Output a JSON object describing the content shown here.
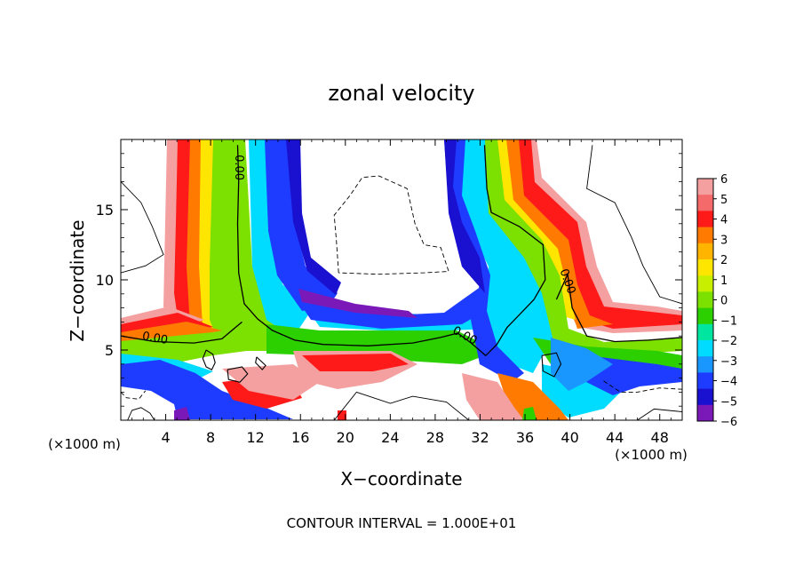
{
  "chart_data": {
    "type": "heatmap",
    "title": "zonal velocity",
    "xlabel": "X−coordinate",
    "ylabel": "Z−coordinate",
    "x_unit_label": "(×1000 m)",
    "x_unit_label_right": "(×1000 m)",
    "footer": "CONTOUR INTERVAL = 1.000E+01",
    "xlim": [
      0,
      50
    ],
    "ylim": [
      0,
      20
    ],
    "x_ticks": [
      4,
      8,
      12,
      16,
      20,
      24,
      28,
      32,
      36,
      40,
      44,
      48
    ],
    "y_ticks": [
      5,
      10,
      15
    ],
    "colorbar": {
      "ticks": [
        6,
        5,
        4,
        3,
        2,
        1,
        0,
        -1,
        -2,
        -3,
        -4,
        -5,
        -6
      ],
      "tick_labels": [
        "6",
        "5",
        "4",
        "3",
        "2",
        "1",
        "0",
        "−1",
        "−2",
        "−3",
        "−4",
        "−5",
        "−6"
      ],
      "colors": [
        "#f4a0a0",
        "#f46a6a",
        "#ff1a1a",
        "#ff7a00",
        "#ffb400",
        "#ffe600",
        "#c8ee00",
        "#7ce000",
        "#2cd000",
        "#00e6a0",
        "#00dcff",
        "#1a96ff",
        "#1e3cff",
        "#1a10d0",
        "#7a18b8"
      ]
    },
    "contour_labels": [
      "0.00",
      "0.00",
      "0.00",
      "0.00"
    ],
    "contour_label_positions": [
      [
        10.2,
        18.0
      ],
      [
        3.0,
        5.6
      ],
      [
        30.5,
        5.8
      ],
      [
        39.5,
        9.8
      ]
    ],
    "zero_contours": [
      [
        [
          10.4,
          19.6
        ],
        [
          10.5,
          17.0
        ],
        [
          10.4,
          14.0
        ],
        [
          10.5,
          10.5
        ],
        [
          11.0,
          8.3
        ],
        [
          12.2,
          7.2
        ],
        [
          13.5,
          6.4
        ],
        [
          15.5,
          5.7
        ],
        [
          18.0,
          5.4
        ],
        [
          22.0,
          5.3
        ],
        [
          26.0,
          5.5
        ],
        [
          28.5,
          5.9
        ],
        [
          30.0,
          6.2
        ],
        [
          31.2,
          5.5
        ],
        [
          32.5,
          4.6
        ],
        [
          33.5,
          5.4
        ],
        [
          34.4,
          6.6
        ],
        [
          35.6,
          7.6
        ],
        [
          36.8,
          8.6
        ],
        [
          37.8,
          10.0
        ],
        [
          37.6,
          12.5
        ],
        [
          35.5,
          13.8
        ],
        [
          33.0,
          14.8
        ],
        [
          32.6,
          16.5
        ],
        [
          32.4,
          19.6
        ]
      ],
      [
        [
          0,
          6.0
        ],
        [
          3.0,
          5.6
        ],
        [
          6.5,
          5.5
        ],
        [
          9.0,
          5.8
        ],
        [
          10.8,
          7.0
        ]
      ],
      [
        [
          38.8,
          8.6
        ],
        [
          39.8,
          10.4
        ],
        [
          40.2,
          8.0
        ],
        [
          41.5,
          6.0
        ],
        [
          44.0,
          5.6
        ],
        [
          47.0,
          5.7
        ],
        [
          50.0,
          5.9
        ]
      ]
    ],
    "solid_contours": [
      [
        [
          0,
          17.0
        ],
        [
          1.8,
          15.5
        ],
        [
          2.8,
          13.8
        ],
        [
          3.8,
          11.8
        ],
        [
          2.2,
          11.0
        ],
        [
          0,
          10.5
        ]
      ],
      [
        [
          42.0,
          19.6
        ],
        [
          41.5,
          16.5
        ],
        [
          44.0,
          15.5
        ],
        [
          45.5,
          13.0
        ],
        [
          46.5,
          11.0
        ],
        [
          48.0,
          8.8
        ],
        [
          50.0,
          8.3
        ]
      ],
      [
        [
          0.6,
          0
        ],
        [
          1.0,
          0.7
        ],
        [
          1.8,
          0.9
        ],
        [
          2.6,
          0.5
        ],
        [
          3.0,
          0
        ]
      ],
      [
        [
          19.0,
          0
        ],
        [
          20.5,
          1.5
        ],
        [
          21.0,
          2.0
        ],
        [
          24.0,
          1.2
        ],
        [
          26.0,
          1.7
        ],
        [
          29.0,
          1.3
        ],
        [
          31.0,
          0
        ]
      ],
      [
        [
          46.0,
          0
        ],
        [
          47.5,
          0.8
        ],
        [
          50.0,
          0.6
        ]
      ]
    ],
    "dashed_contours": [
      [
        [
          19.4,
          10.5
        ],
        [
          19.2,
          12.8
        ],
        [
          19.0,
          14.6
        ],
        [
          20.4,
          16.0
        ],
        [
          21.5,
          17.3
        ],
        [
          23.0,
          17.4
        ],
        [
          25.5,
          16.5
        ],
        [
          26.2,
          14.0
        ],
        [
          27.0,
          12.5
        ],
        [
          28.5,
          12.3
        ],
        [
          29.2,
          10.6
        ],
        [
          27.0,
          10.5
        ],
        [
          23.0,
          10.4
        ],
        [
          19.4,
          10.5
        ]
      ],
      [
        [
          43.0,
          2.8
        ],
        [
          44.5,
          2.0
        ],
        [
          46.0,
          2.0
        ],
        [
          48.0,
          2.3
        ],
        [
          50.0,
          2.2
        ]
      ],
      [
        [
          0,
          2.0
        ],
        [
          0.5,
          1.6
        ],
        [
          1.6,
          1.5
        ],
        [
          2.2,
          2.1
        ]
      ]
    ],
    "closed_contours": [
      [
        [
          7.6,
          5.0
        ],
        [
          8.2,
          4.7
        ],
        [
          8.4,
          4.1
        ],
        [
          8.1,
          3.6
        ],
        [
          7.6,
          3.8
        ],
        [
          7.3,
          4.4
        ],
        [
          7.6,
          5.0
        ]
      ],
      [
        [
          9.5,
          3.6
        ],
        [
          10.8,
          3.8
        ],
        [
          11.3,
          3.3
        ],
        [
          10.6,
          2.7
        ],
        [
          9.6,
          2.9
        ],
        [
          9.5,
          3.6
        ]
      ],
      [
        [
          12.1,
          4.5
        ],
        [
          12.9,
          3.9
        ],
        [
          12.6,
          3.6
        ],
        [
          12.0,
          4.1
        ],
        [
          12.1,
          4.5
        ]
      ],
      [
        [
          37.5,
          4.6
        ],
        [
          38.8,
          4.8
        ],
        [
          39.2,
          4.0
        ],
        [
          38.6,
          3.1
        ],
        [
          37.6,
          3.5
        ],
        [
          37.5,
          4.6
        ]
      ]
    ]
  }
}
